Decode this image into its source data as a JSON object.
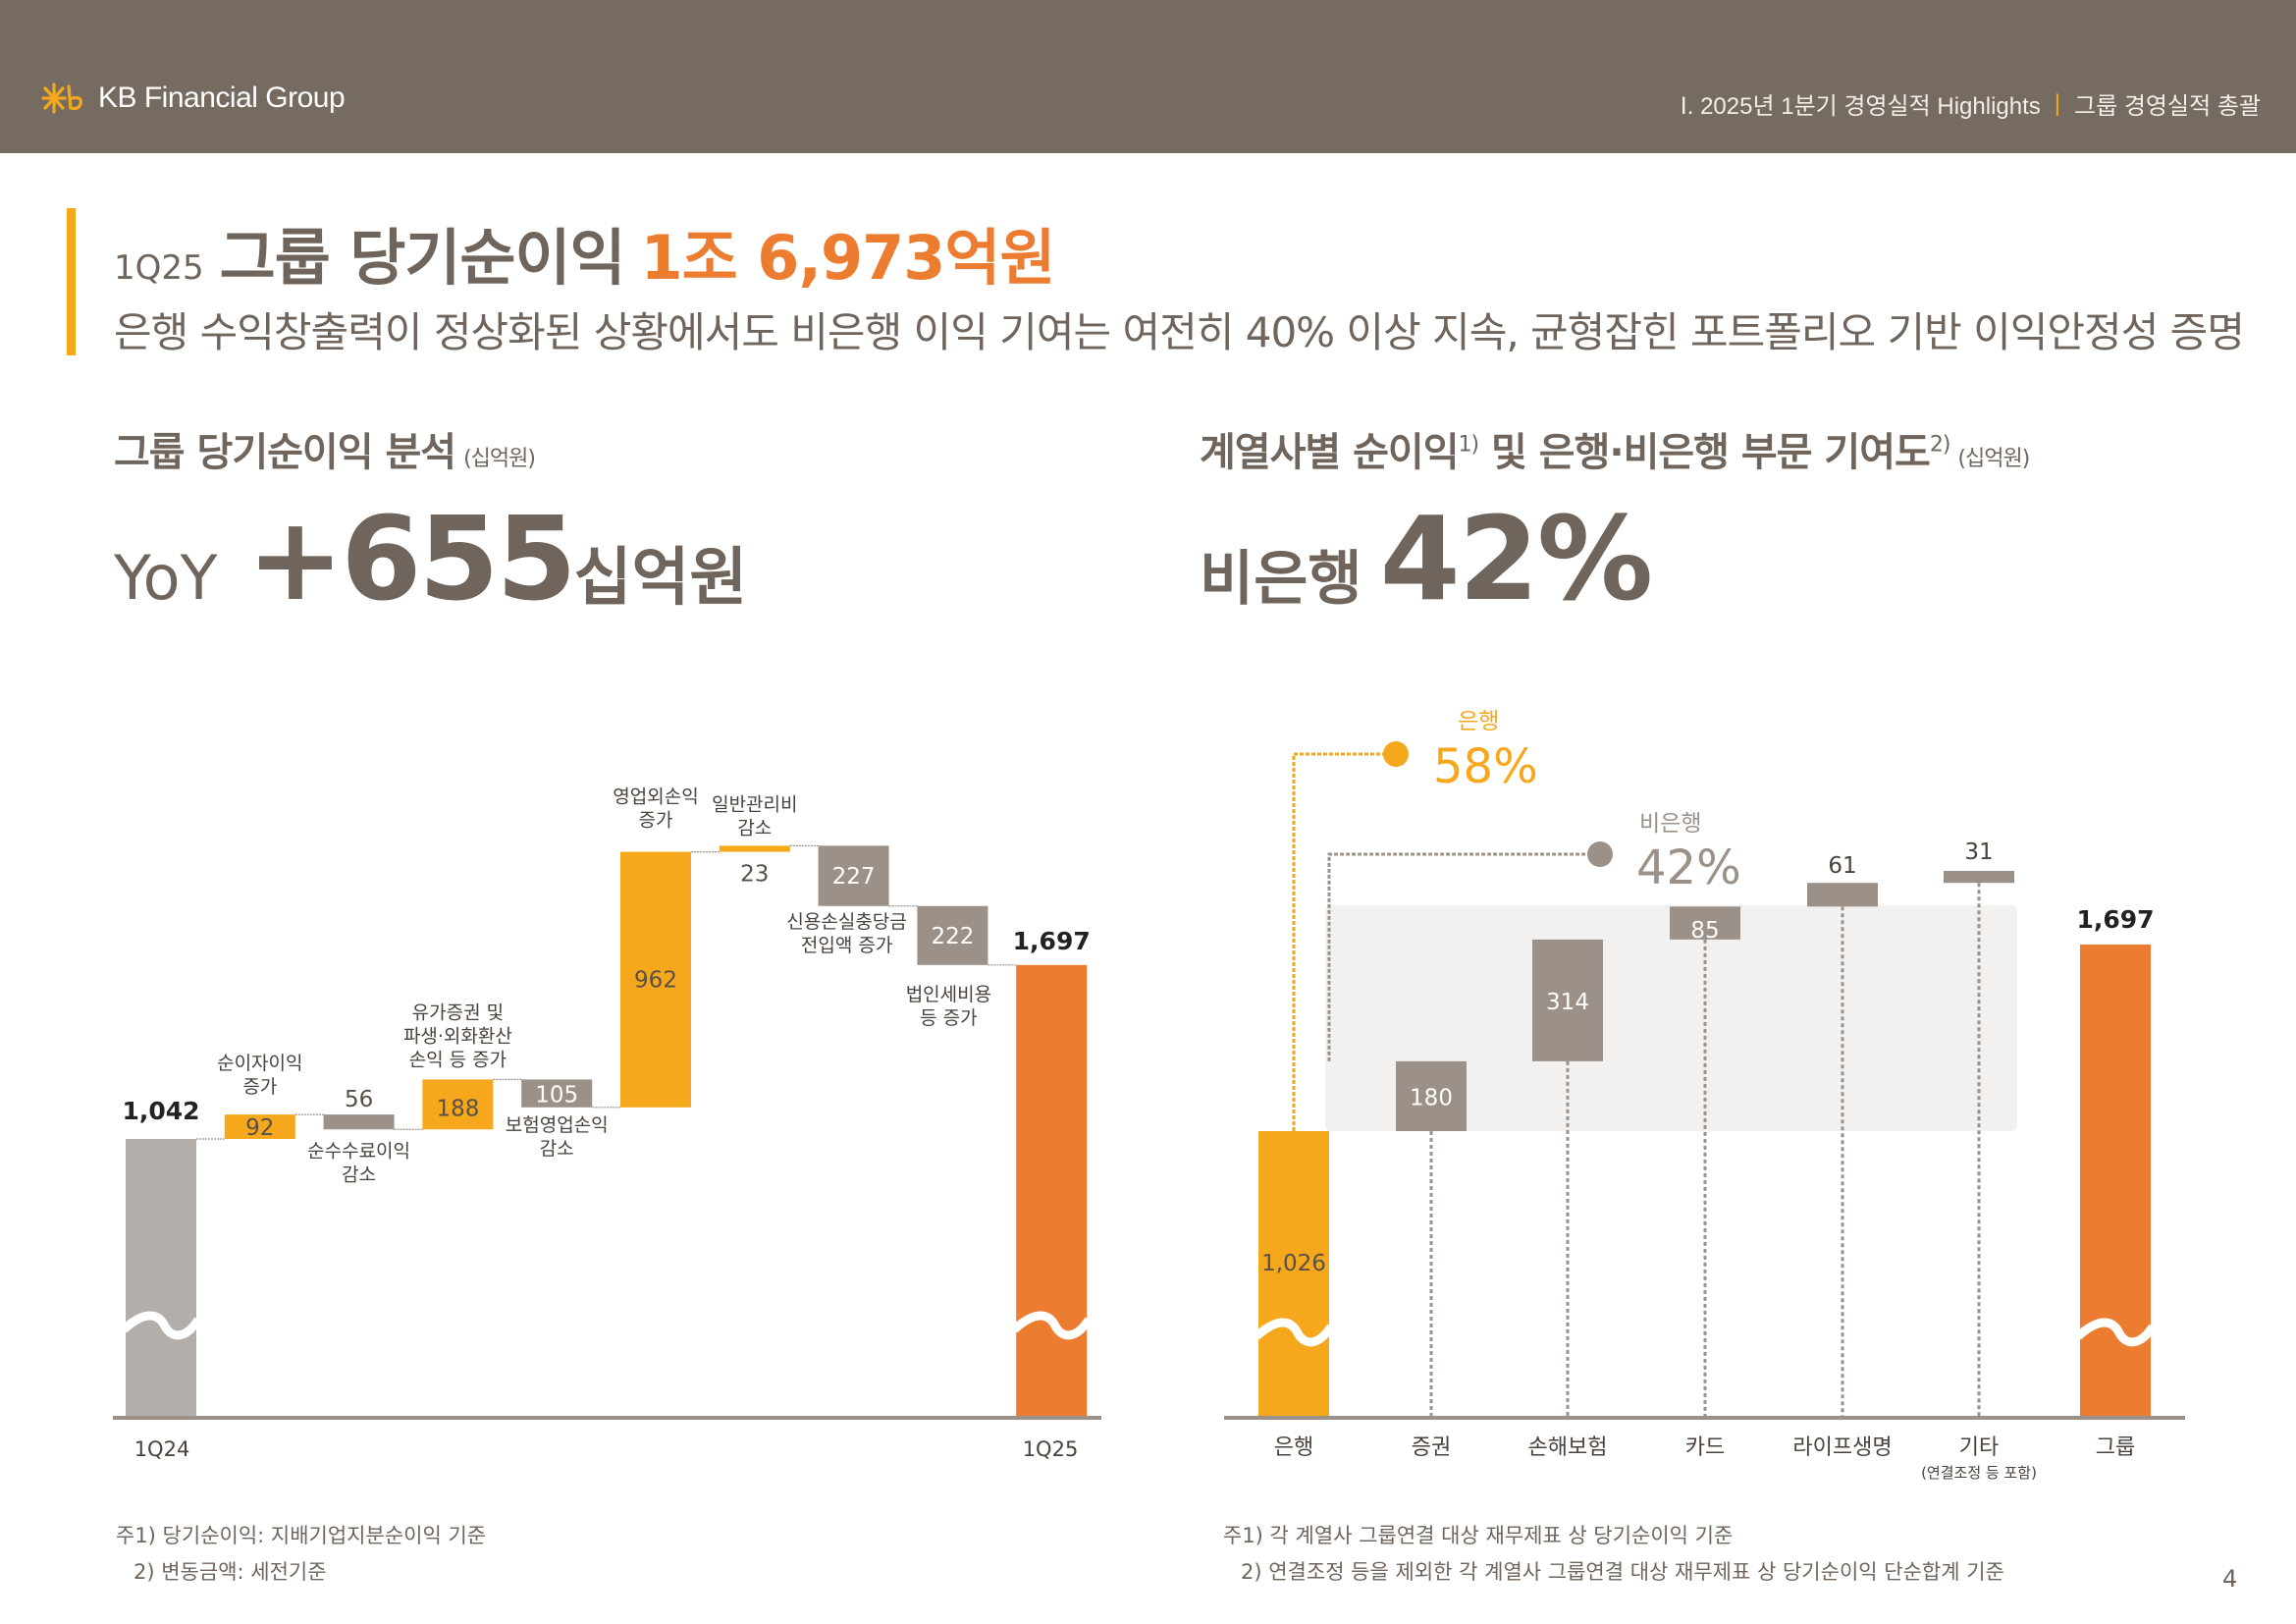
{
  "header": {
    "brand": "KB Financial Group",
    "breadcrumb_section": "Ⅰ. 2025년 1분기 경영실적 Highlights",
    "breadcrumb_separator": "|",
    "breadcrumb_page": "그룹 경영실적 총괄"
  },
  "title": {
    "quarter": "1Q25",
    "main": "그룹 당기순이익",
    "value": "1조 6,973억원",
    "subtitle": "은행 수익창출력이 정상화된 상황에서도 비은행 이익 기여는 여전히 40% 이상 지속, 균형잡힌 포트폴리오 기반 이익안정성 증명"
  },
  "left_section": {
    "title": "그룹 당기순이익 분석",
    "unit": "(십억원)",
    "kpi_prefix": "YoY",
    "kpi_value": "+655",
    "kpi_unit": "십억원",
    "footnotes": [
      "주1) 당기순이익: 지배기업지분순이익 기준",
      "2) 변동금액: 세전기준"
    ]
  },
  "right_section": {
    "title": "계열사별 순이익",
    "title_sup1": "1)",
    "title_mid": " 및 은행·비은행 부문 기여도",
    "title_sup2": "2)",
    "unit": "(십억원)",
    "kpi_prefix": "비은행",
    "kpi_value": "42%",
    "footnotes": [
      "주1) 각 계열사 그룹연결 대상 재무제표 상 당기순이익 기준",
      "2) 연결조정 등을 제외한 각 계열사 그룹연결 대상 재무제표 상 당기순이익 단순합계 기준"
    ]
  },
  "page_number": "4",
  "colors": {
    "header_bg": "#766b61",
    "accent_yellow": "#f5a81c",
    "accent_orange": "#ec7d30",
    "bar_gray": "#9c9189",
    "bar_light_gray": "#b3aea9",
    "text_brown": "#6f655c",
    "panel_bg": "#f3f1ef"
  },
  "chart_data": [
    {
      "type": "bar",
      "subtype": "waterfall",
      "title": "그룹 당기순이익 분석",
      "unit": "십억원",
      "axis_break": true,
      "categories": [
        "1Q24",
        "순이자이익 증가",
        "순수수료이익 감소",
        "유가증권 및 파생·외화환산 손익 등 증가",
        "보험영업손익 감소",
        "영업외손익 증가",
        "일반관리비 감소",
        "신용손실충당금 전입액 증가",
        "법인세비용 등 증가",
        "1Q25"
      ],
      "label_lines": [
        [],
        [
          "순이자이익",
          "증가"
        ],
        [
          "순수수료이익",
          "감소"
        ],
        [
          "유가증권 및",
          "파생·외화환산",
          "손익 등 증가"
        ],
        [
          "보험영업손익",
          "감소"
        ],
        [
          "영업외손익",
          "증가"
        ],
        [
          "일반관리비",
          "감소"
        ],
        [
          "신용손실충당금",
          "전입액 증가"
        ],
        [
          "법인세비용",
          "등 증가"
        ],
        []
      ],
      "values": [
        1042,
        92,
        -56,
        188,
        -105,
        962,
        23,
        -227,
        -222,
        1697
      ],
      "value_labels": [
        "1,042",
        "92",
        "56",
        "188",
        "105",
        "962",
        "23",
        "227",
        "222",
        "1,697"
      ],
      "kinds": [
        "start",
        "increase",
        "decrease",
        "increase",
        "decrease",
        "increase",
        "increase",
        "decrease",
        "decrease",
        "total"
      ],
      "xlabels": [
        "1Q24",
        "",
        "",
        "",
        "",
        "",
        "",
        "",
        "",
        "1Q25"
      ]
    },
    {
      "type": "bar",
      "subtype": "stacked-waterfall",
      "title": "계열사별 순이익 및 은행·비은행 부문 기여도",
      "unit": "십억원",
      "axis_break": true,
      "categories": [
        "은행",
        "증권",
        "손해보험",
        "카드",
        "라이프생명",
        "기타",
        "그룹"
      ],
      "category_sublabels": [
        "",
        "",
        "",
        "",
        "",
        "(연결조정 등 포함)",
        ""
      ],
      "values": [
        1026,
        180,
        314,
        85,
        61,
        31,
        1697
      ],
      "value_labels": [
        "1,026",
        "180",
        "314",
        "85",
        "61",
        "31",
        "1,697"
      ],
      "kinds": [
        "bank",
        "nonbank",
        "nonbank",
        "nonbank",
        "nonbank",
        "nonbank",
        "total"
      ],
      "annotations": [
        {
          "label": "은행",
          "value": "58%",
          "target": "은행"
        },
        {
          "label": "비은행",
          "value": "42%",
          "target": "비은행"
        }
      ]
    }
  ]
}
